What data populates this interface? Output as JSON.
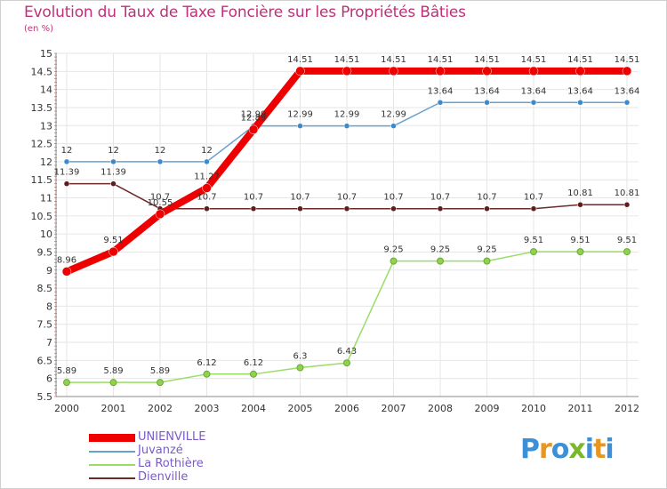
{
  "title": "Evolution du Taux de Taxe Foncière sur les Propriétés Bâties",
  "unit_label": "(en %)",
  "logo": {
    "letters": [
      "P",
      "r",
      "o",
      "x",
      "i",
      "t",
      "i"
    ],
    "colors": [
      "#3d8fd6",
      "#e89620",
      "#3d8fd6",
      "#7ab829",
      "#3d8fd6",
      "#e89620",
      "#3d8fd6"
    ]
  },
  "chart_data": {
    "type": "line",
    "title": "Evolution du Taux de Taxe Foncière sur les Propriétés Bâties",
    "ylabel": "(en %)",
    "xlabel": "",
    "x": [
      "2000",
      "2001",
      "2002",
      "2003",
      "2004",
      "2005",
      "2006",
      "2007",
      "2008",
      "2009",
      "2010",
      "2011",
      "2012"
    ],
    "ylim": [
      5.5,
      15
    ],
    "yticks": [
      "5.5",
      "6",
      "6.5",
      "7",
      "7.5",
      "8",
      "8.5",
      "9",
      "9.5",
      "10",
      "10.5",
      "11",
      "11.5",
      "12",
      "12.5",
      "13",
      "13.5",
      "14",
      "14.5",
      "15"
    ],
    "series": [
      {
        "name": "UNIENVILLE",
        "color": "#ee0000",
        "values": [
          8.96,
          9.51,
          10.55,
          11.27,
          12.89,
          14.51,
          14.51,
          14.51,
          14.51,
          14.51,
          14.51,
          14.51,
          14.51
        ],
        "labels": [
          "8.96",
          "9.51",
          "10.55",
          "11.27",
          "12.89",
          "14.51",
          "14.51",
          "14.51",
          "14.51",
          "14.51",
          "14.51",
          "14.51",
          "14.51"
        ]
      },
      {
        "name": "Juvanzé",
        "color": "#6aa2cc",
        "values": [
          12,
          12,
          12,
          12,
          12.99,
          12.99,
          12.99,
          12.99,
          13.64,
          13.64,
          13.64,
          13.64,
          13.64
        ],
        "labels": [
          "12",
          "12",
          "12",
          "12",
          "12.99",
          "12.99",
          "12.99",
          "12.99",
          "13.64",
          "13.64",
          "13.64",
          "13.64",
          "13.64"
        ]
      },
      {
        "name": "La Rothière",
        "color": "#99dd66",
        "values": [
          5.89,
          5.89,
          5.89,
          6.12,
          6.12,
          6.3,
          6.43,
          9.25,
          9.25,
          9.25,
          9.51,
          9.51,
          9.51
        ],
        "labels": [
          "5.89",
          "5.89",
          "5.89",
          "6.12",
          "6.12",
          "6.3",
          "6.43",
          "9.25",
          "9.25",
          "9.25",
          "9.51",
          "9.51",
          "9.51"
        ]
      },
      {
        "name": "Dienville",
        "color": "#6b2a2a",
        "values": [
          11.39,
          11.39,
          10.7,
          10.7,
          10.7,
          10.7,
          10.7,
          10.7,
          10.7,
          10.7,
          10.7,
          10.81,
          10.81
        ],
        "labels": [
          "11.39",
          "11.39",
          "10.7",
          "10.7",
          "10.7",
          "10.7",
          "10.7",
          "10.7",
          "10.7",
          "10.7",
          "10.7",
          "10.81",
          "10.81"
        ]
      }
    ]
  },
  "legend": {
    "items": [
      {
        "label": "UNIENVILLE",
        "color": "#ee0000"
      },
      {
        "label": "Juvanzé",
        "color": "#6aa2cc"
      },
      {
        "label": "La Rothière",
        "color": "#99dd66"
      },
      {
        "label": "Dienville",
        "color": "#6b2a2a"
      }
    ]
  }
}
